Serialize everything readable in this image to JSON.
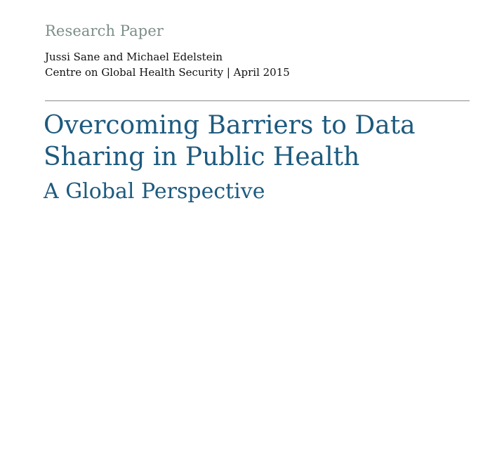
{
  "header": {
    "document_type": "Research Paper",
    "authors": "Jussi Sane and Michael Edelstein",
    "affiliation": "Centre on Global Health Security | April 2015"
  },
  "title": {
    "line1": "Overcoming Barriers to Data",
    "line2": "Sharing in Public Health",
    "subtitle": "A Global Perspective"
  },
  "colors": {
    "document_type": "#7d8e8a",
    "title": "#1d5a7e",
    "body_text": "#111111",
    "divider": "#8a8a8a"
  }
}
